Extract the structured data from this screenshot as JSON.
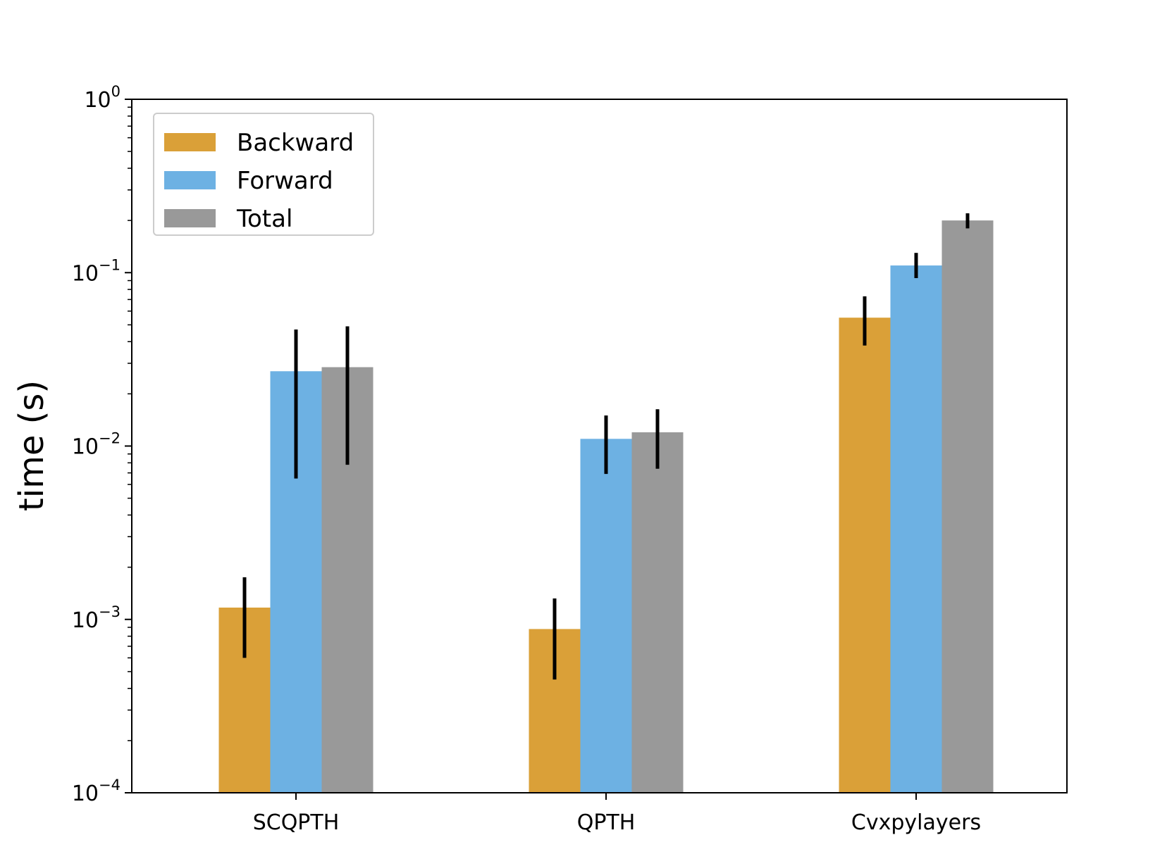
{
  "chart_data": {
    "type": "bar",
    "categories": [
      "SCQPTH",
      "QPTH",
      "Cvxpylayers"
    ],
    "series": [
      {
        "name": "Backward",
        "color": "#daa038",
        "values": [
          0.00117,
          0.00088,
          0.055
        ],
        "err_low": [
          0.0006,
          0.00045,
          0.038
        ],
        "err_high": [
          0.00175,
          0.00132,
          0.073
        ]
      },
      {
        "name": "Forward",
        "color": "#6db1e3",
        "values": [
          0.027,
          0.011,
          0.11
        ],
        "err_low": [
          0.0065,
          0.0069,
          0.093
        ],
        "err_high": [
          0.047,
          0.015,
          0.13
        ]
      },
      {
        "name": "Total",
        "color": "#999999",
        "values": [
          0.0285,
          0.012,
          0.2
        ],
        "err_low": [
          0.0078,
          0.0074,
          0.18
        ],
        "err_high": [
          0.049,
          0.0163,
          0.22
        ]
      }
    ],
    "ylabel": "time (s)",
    "xlabel": "",
    "yscale": "log",
    "ylim": [
      0.0001,
      1
    ],
    "yticks": [
      {
        "base": "10",
        "exp": "−4"
      },
      {
        "base": "10",
        "exp": "−3"
      },
      {
        "base": "10",
        "exp": "−2"
      },
      {
        "base": "10",
        "exp": "−1"
      },
      {
        "base": "10",
        "exp": "0"
      }
    ],
    "legend_position": "top-left",
    "grid": false
  }
}
